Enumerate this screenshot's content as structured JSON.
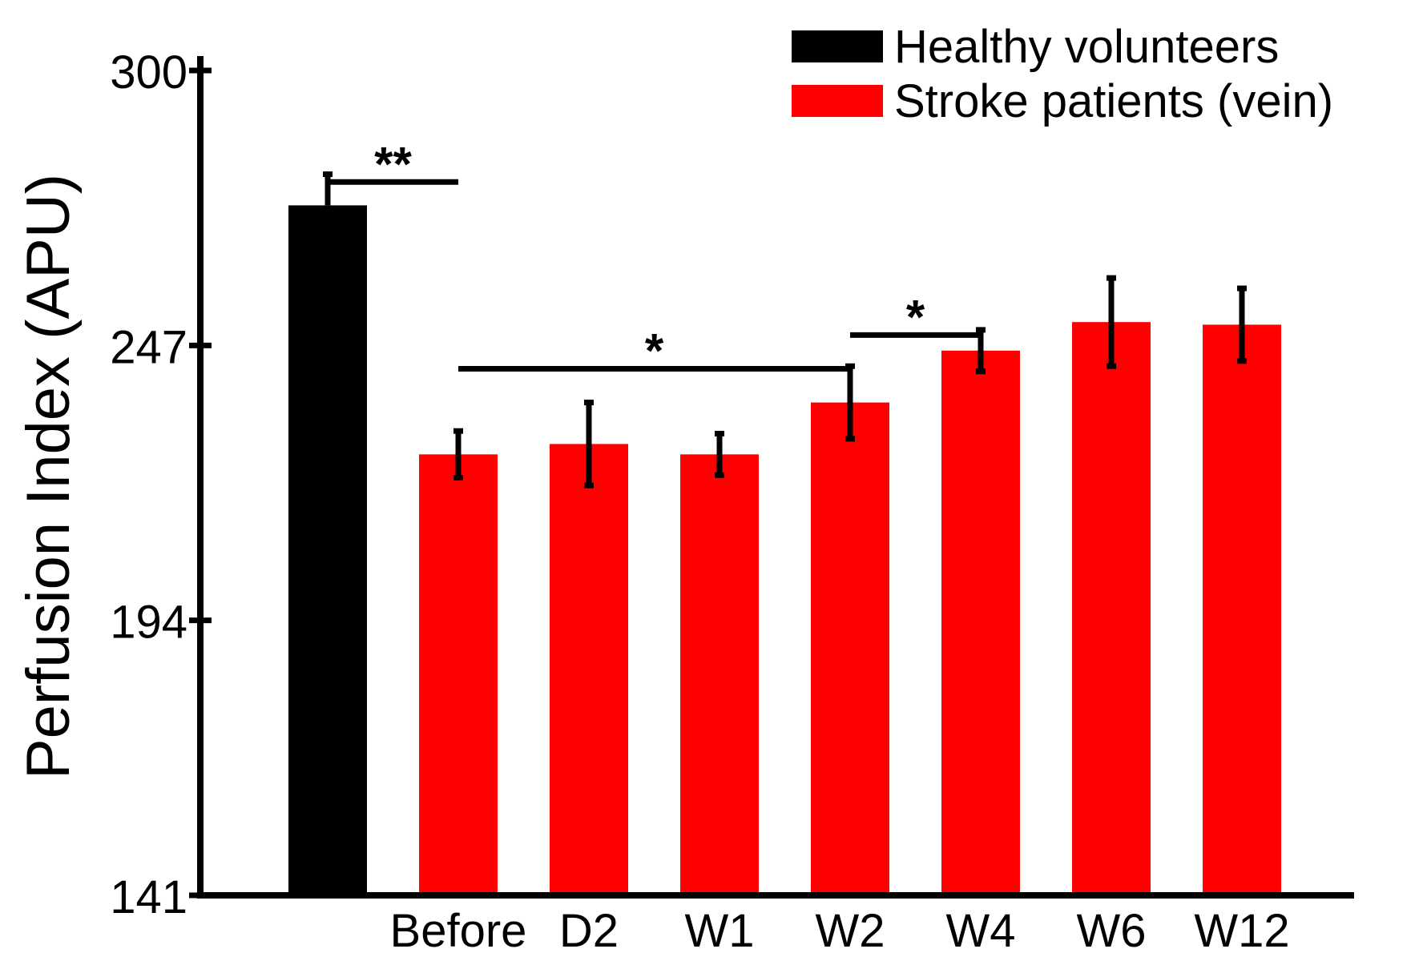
{
  "chart_data": {
    "type": "bar",
    "title": "",
    "xlabel": "",
    "ylabel": "Perfusion Index (APU)",
    "ylim": [
      141,
      300
    ],
    "yticks": [
      141,
      194,
      247,
      300
    ],
    "legend_position": "top-right",
    "grid": false,
    "series": [
      {
        "name": "Healthy volunteers",
        "color": "#000000"
      },
      {
        "name": "Stroke patients (vein)",
        "color": "#ff0000"
      }
    ],
    "bars": [
      {
        "category": "",
        "series": "Healthy volunteers",
        "value": 274,
        "error": 6,
        "error_style": "up"
      },
      {
        "category": "Before",
        "series": "Stroke patients (vein)",
        "value": 226,
        "error": 4.5,
        "error_style": "both"
      },
      {
        "category": "D2",
        "series": "Stroke patients (vein)",
        "value": 228,
        "error": 8,
        "error_style": "both"
      },
      {
        "category": "W1",
        "series": "Stroke patients (vein)",
        "value": 226,
        "error": 4,
        "error_style": "both"
      },
      {
        "category": "W2",
        "series": "Stroke patients (vein)",
        "value": 236,
        "error": 7,
        "error_style": "both"
      },
      {
        "category": "W4",
        "series": "Stroke patients (vein)",
        "value": 246,
        "error": 4,
        "error_style": "both"
      },
      {
        "category": "W6",
        "series": "Stroke patients (vein)",
        "value": 251.5,
        "error": 8.5,
        "error_style": "both"
      },
      {
        "category": "W12",
        "series": "Stroke patients (vein)",
        "value": 251,
        "error": 7,
        "error_style": "both"
      }
    ],
    "significance": [
      {
        "label": "**",
        "from_bar": 0,
        "to_bar": 1,
        "y_value": 278.5
      },
      {
        "label": "*",
        "from_bar": 1,
        "to_bar": 4,
        "y_value": 242.5
      },
      {
        "label": "*",
        "from_bar": 4,
        "to_bar": 5,
        "y_value": 249
      }
    ]
  }
}
